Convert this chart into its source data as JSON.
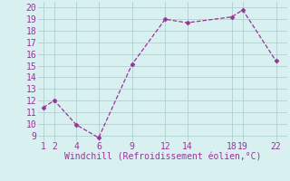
{
  "x": [
    1,
    2,
    4,
    6,
    9,
    12,
    14,
    18,
    19,
    22
  ],
  "y": [
    11.4,
    12.0,
    9.9,
    8.8,
    15.1,
    19.0,
    18.7,
    19.2,
    19.8,
    15.4
  ],
  "line_color": "#993399",
  "marker": "D",
  "marker_size": 2.5,
  "line_width": 0.9,
  "bg_color": "#d8f0f0",
  "grid_color": "#b0d0d0",
  "xlabel": "Windchill (Refroidissement éolien,°C)",
  "xlabel_color": "#993399",
  "xlabel_fontsize": 7,
  "tick_fontsize": 7,
  "xticks": [
    1,
    2,
    4,
    6,
    9,
    12,
    14,
    18,
    19,
    22
  ],
  "yticks": [
    9,
    10,
    11,
    12,
    13,
    14,
    15,
    16,
    17,
    18,
    19,
    20
  ],
  "ylim": [
    8.5,
    20.5
  ],
  "xlim": [
    0.5,
    23.0
  ]
}
